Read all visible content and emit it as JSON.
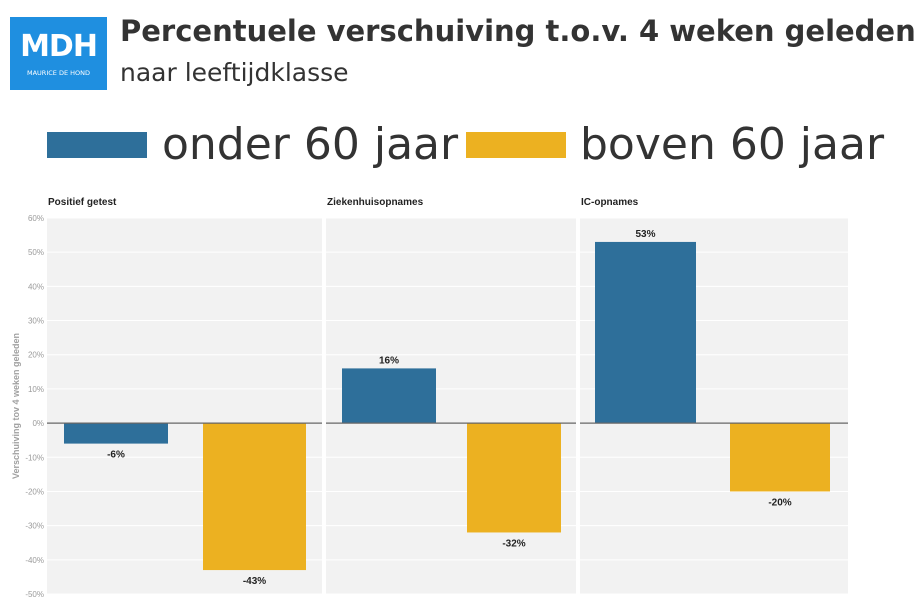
{
  "header": {
    "logo_text": "MDH",
    "logo_subtext": "MAURICE DE HOND",
    "title": "Percentuele verschuiving t.o.v. 4 weken geleden",
    "subtitle": "naar leeftijdklasse"
  },
  "legend": [
    {
      "label": "onder 60 jaar",
      "color": "#2e6f9a"
    },
    {
      "label": "boven 60 jaar",
      "color": "#ecb121"
    }
  ],
  "chart_data": {
    "type": "bar",
    "ylabel": "Verschuiving tov 4 weken geleden",
    "ylim": [
      -50,
      60
    ],
    "yticks": [
      "60%",
      "50%",
      "40%",
      "30%",
      "20%",
      "10%",
      "0%",
      "-10%",
      "-20%",
      "-30%",
      "-40%",
      "-50%"
    ],
    "grid": true,
    "series_names": [
      "onder 60 jaar",
      "boven 60 jaar"
    ],
    "colors": [
      "#2e6f9a",
      "#ecb121"
    ],
    "panels": [
      {
        "name": "Positief getest",
        "values": [
          -6,
          -43
        ],
        "labels": [
          "-6%",
          "-43%"
        ]
      },
      {
        "name": "Ziekenhuisopnames",
        "values": [
          16,
          -32
        ],
        "labels": [
          "16%",
          "-32%"
        ]
      },
      {
        "name": "IC-opnames",
        "values": [
          53,
          -20
        ],
        "labels": [
          "53%",
          "-20%"
        ]
      }
    ]
  }
}
